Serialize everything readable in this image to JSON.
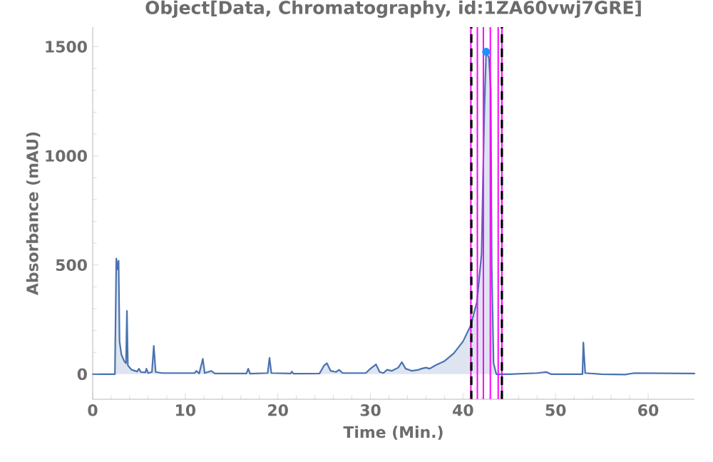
{
  "chart_data": {
    "type": "area",
    "title": "Object[Data, Chromatography, id:1ZA60vwj7GRE]",
    "xlabel": "Time  (Min.)",
    "ylabel": "Absorbance  (mAU)",
    "xlim": [
      0,
      65
    ],
    "ylim": [
      -115,
      1590
    ],
    "xticks": [
      0,
      10,
      20,
      30,
      40,
      50,
      60
    ],
    "yticks": [
      0,
      500,
      1000,
      1500
    ],
    "series": [
      {
        "color": "#4a72b0",
        "x": [
          0,
          2.4,
          2.55,
          2.7,
          2.8,
          2.9,
          3.1,
          3.4,
          3.6,
          3.7,
          3.8,
          4.2,
          4.8,
          5.0,
          5.2,
          5.7,
          5.8,
          6.0,
          6.4,
          6.6,
          6.8,
          7.5,
          11.0,
          11.2,
          11.5,
          11.9,
          12.1,
          12.8,
          13.2,
          16.6,
          16.8,
          17.0,
          18.9,
          19.1,
          19.3,
          21.4,
          21.5,
          21.7,
          24.5,
          25.0,
          25.3,
          25.7,
          26.3,
          26.6,
          27.0,
          29.5,
          30.0,
          30.6,
          31.0,
          31.4,
          31.8,
          32.3,
          33.0,
          33.4,
          33.8,
          34.5,
          35.2,
          35.5,
          36.0,
          36.4,
          37.0,
          38.0,
          39.0,
          40.0,
          40.8,
          41.5,
          42.0,
          42.3,
          42.5,
          42.8,
          43.0,
          43.1,
          43.3,
          43.6,
          45,
          48,
          49,
          49.5,
          52.9,
          53.0,
          53.2,
          55,
          57.5,
          58.5,
          65
        ],
        "values": [
          0,
          0,
          530,
          480,
          520,
          150,
          90,
          60,
          50,
          290,
          40,
          20,
          12,
          25,
          10,
          8,
          25,
          5,
          10,
          130,
          10,
          5,
          5,
          15,
          3,
          70,
          5,
          15,
          3,
          3,
          25,
          2,
          5,
          75,
          5,
          3,
          12,
          2,
          3,
          40,
          50,
          15,
          10,
          20,
          5,
          5,
          25,
          45,
          10,
          5,
          20,
          15,
          30,
          55,
          25,
          15,
          20,
          25,
          30,
          25,
          40,
          60,
          95,
          150,
          220,
          330,
          550,
          1200,
          1477,
          1450,
          1300,
          500,
          50,
          0,
          0,
          5,
          10,
          0,
          0,
          145,
          5,
          0,
          -2,
          5,
          3
        ]
      },
      {
        "type": "scatter",
        "color": "#1e90ff",
        "marker": "circle",
        "x": [
          42.5
        ],
        "values": [
          1477
        ]
      }
    ],
    "ref_lines": [
      {
        "axis": "x",
        "value": 40.85,
        "color": "#ff00ff",
        "line_style": "solid"
      },
      {
        "axis": "x",
        "value": 41.55,
        "color": "#ff00ff",
        "line_style": "solid"
      },
      {
        "axis": "x",
        "value": 42.2,
        "color": "#ff00ff",
        "line_style": "solid"
      },
      {
        "axis": "x",
        "value": 42.95,
        "color": "#ff00ff",
        "line_style": "solid"
      },
      {
        "axis": "x",
        "value": 43.8,
        "color": "#ff00ff",
        "line_style": "solid"
      },
      {
        "axis": "x",
        "value": 44.2,
        "color": "#ff00ff",
        "line_style": "solid"
      },
      {
        "axis": "x",
        "value": 40.9,
        "color": "#000000",
        "line_style": "dashed"
      },
      {
        "axis": "x",
        "value": 44.2,
        "color": "#000000",
        "line_style": "dashed"
      }
    ]
  }
}
